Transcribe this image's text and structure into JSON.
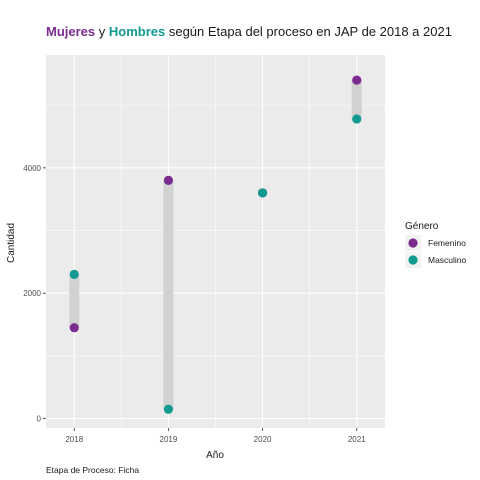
{
  "chart_data": {
    "type": "scatter",
    "title_parts": [
      {
        "text": "Mujeres",
        "color": "#7b2c8f",
        "bold": true
      },
      {
        "text": " y ",
        "color": "#1a1a1a",
        "bold": false
      },
      {
        "text": "Hombres",
        "color": "#129990",
        "bold": true
      },
      {
        "text": " según Etapa del proceso en JAP de 2018 a 2021",
        "color": "#1a1a1a",
        "bold": false
      }
    ],
    "xlabel": "Año",
    "ylabel": "Cantidad",
    "caption": "Etapa de Proceso: Ficha",
    "x_ticks": [
      "2018",
      "2019",
      "2020",
      "2021"
    ],
    "y_ticks": [
      0,
      2000,
      4000
    ],
    "ylim": [
      -150,
      5800
    ],
    "legend": {
      "title": "Género",
      "position": "right",
      "entries": [
        {
          "label": "Femenino",
          "color": "#7b2c8f"
        },
        {
          "label": "Masculino",
          "color": "#129990"
        }
      ]
    },
    "series": [
      {
        "name": "Femenino",
        "color": "#7b2c8f",
        "values": [
          1450,
          3800,
          3600,
          5400
        ]
      },
      {
        "name": "Masculino",
        "color": "#129990",
        "values": [
          2300,
          150,
          3600,
          4780
        ]
      }
    ],
    "colors": {
      "panel": "#ebebeb",
      "grid": "#ffffff",
      "range_bar": "#d1d1d1"
    }
  }
}
